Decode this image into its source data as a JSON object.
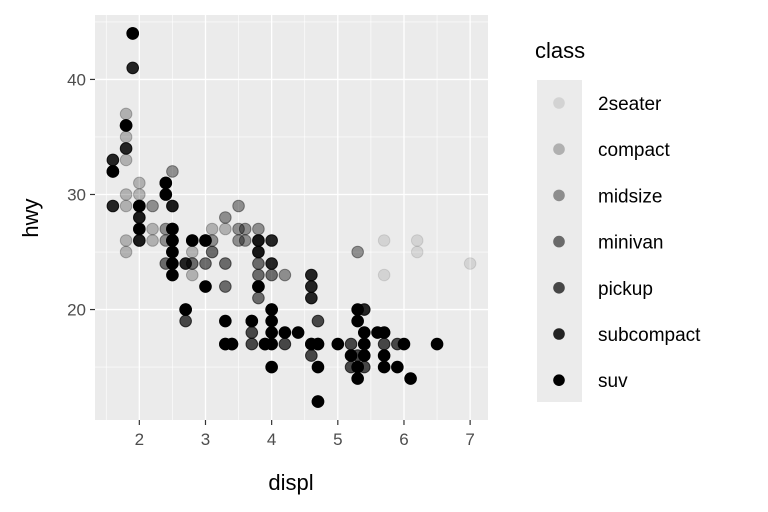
{
  "chart_data": {
    "type": "scatter",
    "xlabel": "displ",
    "ylabel": "hwy",
    "xlim": [
      1.33,
      7.27
    ],
    "ylim": [
      10.4,
      45.6
    ],
    "xticks": [
      "2",
      "3",
      "4",
      "5",
      "6",
      "7"
    ],
    "yticks": [
      "20",
      "30",
      "40"
    ],
    "grid": true,
    "legend": {
      "title": "class",
      "placement": "right",
      "encoding": "alpha"
    },
    "series": [
      {
        "name": "2seater",
        "alpha": 0.1,
        "points": [
          [
            5.7,
            26
          ],
          [
            5.7,
            23
          ],
          [
            6.2,
            26
          ],
          [
            6.2,
            25
          ],
          [
            7.0,
            24
          ]
        ]
      },
      {
        "name": "compact",
        "alpha": 0.25,
        "points": [
          [
            1.8,
            29
          ],
          [
            2.0,
            31
          ],
          [
            2.0,
            30
          ],
          [
            2.8,
            26
          ],
          [
            3.1,
            27
          ],
          [
            1.8,
            26
          ],
          [
            1.8,
            25
          ],
          [
            2.0,
            28
          ],
          [
            2.0,
            27
          ],
          [
            2.8,
            25
          ],
          [
            3.1,
            25
          ],
          [
            2.0,
            29
          ],
          [
            2.0,
            26
          ],
          [
            2.5,
            29
          ],
          [
            2.8,
            23
          ],
          [
            2.8,
            24
          ],
          [
            2.2,
            26
          ],
          [
            2.2,
            27
          ],
          [
            2.4,
            31
          ],
          [
            3.0,
            26
          ],
          [
            3.3,
            27
          ],
          [
            1.8,
            30
          ],
          [
            1.8,
            33
          ],
          [
            1.8,
            35
          ],
          [
            1.8,
            37
          ],
          [
            2.5,
            24
          ],
          [
            2.5,
            26
          ]
        ]
      },
      {
        "name": "midsize",
        "alpha": 0.4,
        "points": [
          [
            2.8,
            24
          ],
          [
            3.1,
            25
          ],
          [
            4.2,
            23
          ],
          [
            2.4,
            27
          ],
          [
            2.4,
            30
          ],
          [
            3.1,
            26
          ],
          [
            3.5,
            29
          ],
          [
            3.6,
            26
          ],
          [
            3.8,
            27
          ],
          [
            3.8,
            26
          ],
          [
            3.8,
            25
          ],
          [
            5.3,
            25
          ],
          [
            2.4,
            26
          ],
          [
            2.5,
            26
          ],
          [
            3.3,
            28
          ],
          [
            2.5,
            32
          ],
          [
            3.5,
            27
          ],
          [
            3.5,
            26
          ],
          [
            2.4,
            31
          ],
          [
            3.0,
            26
          ],
          [
            2.2,
            29
          ],
          [
            3.6,
            27
          ]
        ]
      },
      {
        "name": "minivan",
        "alpha": 0.55,
        "points": [
          [
            2.4,
            24
          ],
          [
            3.0,
            24
          ],
          [
            3.3,
            22
          ],
          [
            3.3,
            24
          ],
          [
            3.3,
            17
          ],
          [
            3.8,
            22
          ],
          [
            3.8,
            21
          ],
          [
            3.8,
            23
          ],
          [
            4.0,
            23
          ],
          [
            3.8,
            24
          ]
        ]
      },
      {
        "name": "pickup",
        "alpha": 0.7,
        "points": [
          [
            3.7,
            19
          ],
          [
            3.7,
            18
          ],
          [
            3.9,
            17
          ],
          [
            4.7,
            19
          ],
          [
            4.7,
            12
          ],
          [
            5.2,
            17
          ],
          [
            5.2,
            15
          ],
          [
            3.7,
            17
          ],
          [
            4.7,
            17
          ],
          [
            5.7,
            17
          ],
          [
            5.9,
            17
          ],
          [
            4.2,
            17
          ],
          [
            4.6,
            16
          ],
          [
            4.6,
            17
          ],
          [
            5.4,
            15
          ],
          [
            5.4,
            17
          ],
          [
            2.7,
            20
          ],
          [
            2.7,
            19
          ],
          [
            3.4,
            17
          ],
          [
            4.0,
            20
          ],
          [
            5.3,
            16
          ],
          [
            5.3,
            15
          ]
        ]
      },
      {
        "name": "subcompact",
        "alpha": 0.85,
        "points": [
          [
            1.6,
            33
          ],
          [
            1.6,
            32
          ],
          [
            1.6,
            29
          ],
          [
            1.8,
            34
          ],
          [
            1.8,
            36
          ],
          [
            2.0,
            29
          ],
          [
            1.9,
            44
          ],
          [
            1.9,
            41
          ],
          [
            2.0,
            26
          ],
          [
            2.5,
            29
          ],
          [
            3.8,
            26
          ],
          [
            3.8,
            25
          ],
          [
            4.0,
            26
          ],
          [
            4.0,
            24
          ],
          [
            4.6,
            21
          ],
          [
            4.6,
            22
          ],
          [
            4.6,
            23
          ],
          [
            5.4,
            20
          ],
          [
            2.0,
            28
          ],
          [
            2.7,
            24
          ],
          [
            2.5,
            27
          ],
          [
            2.5,
            25
          ],
          [
            2.5,
            26
          ]
        ]
      },
      {
        "name": "suv",
        "alpha": 1.0,
        "points": [
          [
            4.0,
            17
          ],
          [
            4.7,
            15
          ],
          [
            5.7,
            15
          ],
          [
            6.1,
            14
          ],
          [
            5.7,
            16
          ],
          [
            2.5,
            25
          ],
          [
            2.5,
            26
          ],
          [
            2.5,
            27
          ],
          [
            2.5,
            24
          ],
          [
            2.5,
            23
          ],
          [
            2.7,
            20
          ],
          [
            3.4,
            17
          ],
          [
            4.0,
            20
          ],
          [
            4.7,
            17
          ],
          [
            5.7,
            18
          ],
          [
            3.0,
            22
          ],
          [
            3.7,
            19
          ],
          [
            4.7,
            12
          ],
          [
            4.0,
            19
          ],
          [
            4.6,
            17
          ],
          [
            5.0,
            17
          ],
          [
            5.4,
            17
          ],
          [
            5.4,
            16
          ],
          [
            5.4,
            18
          ],
          [
            3.3,
            17
          ],
          [
            3.3,
            19
          ],
          [
            4.0,
            18
          ],
          [
            5.6,
            18
          ],
          [
            5.3,
            20
          ],
          [
            5.3,
            15
          ],
          [
            6.0,
            17
          ],
          [
            5.3,
            19
          ],
          [
            5.3,
            14
          ],
          [
            6.5,
            17
          ],
          [
            4.0,
            15
          ],
          [
            4.2,
            18
          ],
          [
            4.4,
            18
          ],
          [
            3.9,
            17
          ],
          [
            5.2,
            16
          ],
          [
            5.9,
            15
          ],
          [
            1.6,
            32
          ],
          [
            1.8,
            36
          ],
          [
            1.9,
            44
          ],
          [
            2.0,
            29
          ],
          [
            2.4,
            31
          ],
          [
            2.0,
            27
          ],
          [
            2.4,
            30
          ],
          [
            3.0,
            26
          ],
          [
            2.8,
            26
          ],
          [
            3.8,
            22
          ]
        ]
      }
    ]
  }
}
